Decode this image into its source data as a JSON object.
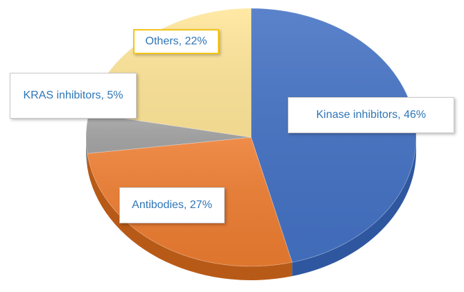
{
  "chart_data": {
    "type": "pie",
    "style": "3d",
    "title": "",
    "slices": [
      {
        "label": "Kinase inhibitors",
        "value": 46,
        "color": "#4472C4",
        "side_color": "#2F57A0",
        "data_label": "Kinase inhibitors, 46%"
      },
      {
        "label": "Antibodies",
        "value": 27,
        "color": "#ED7D31",
        "side_color": "#B85A17",
        "data_label": "Antibodies,  27%"
      },
      {
        "label": "KRAS inhibitors",
        "value": 5,
        "color": "#A5A5A5",
        "side_color": "#7B7B7B",
        "data_label": "KRAS inhibitors, 5%"
      },
      {
        "label": "Others",
        "value": 22,
        "color": "#FFE699",
        "side_color": "#C9B060",
        "data_label": "Others,  22%"
      }
    ],
    "legend": "none",
    "data_label_color": "#2E75B6"
  }
}
